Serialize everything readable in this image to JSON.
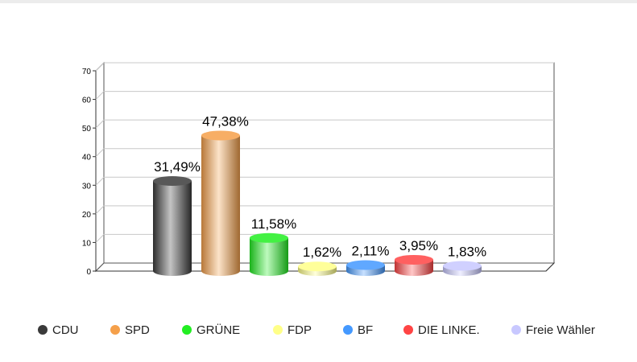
{
  "chart_data": {
    "type": "bar",
    "title": "",
    "xlabel": "",
    "ylabel": "",
    "ylim": [
      0,
      70
    ],
    "yticks": [
      0,
      10,
      20,
      30,
      40,
      50,
      60,
      70
    ],
    "grid": true,
    "legend_position": "bottom",
    "categories": [
      "CDU",
      "SPD",
      "GRÜNE",
      "FDP",
      "BF",
      "DIE LINKE.",
      "Freie Wähler"
    ],
    "values": [
      31.49,
      47.38,
      11.58,
      1.62,
      2.11,
      3.95,
      1.83
    ],
    "data_labels": [
      "31,49%",
      "47,38%",
      "11,58%",
      "1,62%",
      "2,11%",
      "3,95%",
      "1,83%"
    ],
    "colors": [
      "#3a3a3a",
      "#f5a04a",
      "#22ee22",
      "#ffff88",
      "#4499ff",
      "#ff4444",
      "#c8c8ff"
    ]
  }
}
